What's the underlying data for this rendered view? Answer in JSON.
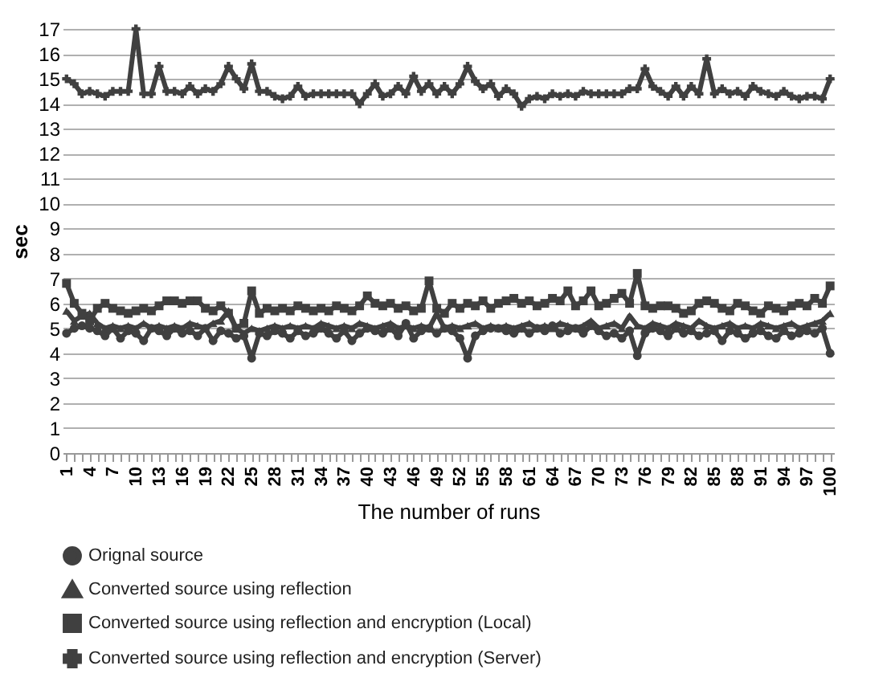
{
  "chart_data": {
    "type": "line",
    "xlabel": "The number of runs",
    "ylabel": "sec",
    "categories": [
      "1",
      null,
      null,
      "4",
      null,
      null,
      "7",
      null,
      null,
      "10",
      null,
      null,
      "13",
      null,
      null,
      "16",
      null,
      null,
      "19",
      null,
      null,
      "22",
      null,
      null,
      "25",
      null,
      null,
      "28",
      null,
      null,
      "31",
      null,
      null,
      "34",
      null,
      null,
      "37",
      null,
      null,
      "40",
      null,
      null,
      "43",
      null,
      null,
      "46",
      null,
      null,
      "49",
      null,
      null,
      "52",
      null,
      null,
      "55",
      null,
      null,
      "58",
      null,
      null,
      "61",
      null,
      null,
      "64",
      null,
      null,
      "67",
      null,
      null,
      "70",
      null,
      null,
      "73",
      null,
      null,
      "76",
      null,
      null,
      "79",
      null,
      null,
      "82",
      null,
      null,
      "85",
      null,
      null,
      "88",
      null,
      null,
      "91",
      null,
      null,
      "94",
      null,
      null,
      "97",
      null,
      null,
      "100"
    ],
    "ylim": [
      0,
      17
    ],
    "yticks": [
      0,
      1,
      2,
      3,
      4,
      5,
      6,
      7,
      8,
      9,
      10,
      11,
      12,
      13,
      14,
      15,
      16,
      17
    ],
    "grid": "y",
    "legend": "bottom",
    "line_style": "solid",
    "series": [
      {
        "name": "Orignal source",
        "color": "#404040",
        "marker": "circle",
        "values": [
          4.8,
          5.0,
          5.1,
          5.0,
          4.9,
          4.7,
          5.0,
          4.6,
          4.9,
          4.8,
          4.5,
          5.0,
          4.9,
          4.7,
          5.0,
          4.8,
          4.9,
          4.7,
          5.0,
          4.5,
          4.9,
          4.8,
          4.6,
          4.7,
          3.8,
          4.8,
          4.7,
          4.9,
          4.8,
          4.6,
          4.9,
          4.7,
          4.8,
          5.0,
          4.8,
          4.6,
          4.9,
          4.5,
          4.8,
          5.0,
          4.9,
          4.8,
          5.0,
          4.7,
          5.2,
          4.6,
          4.9,
          5.0,
          4.8,
          5.0,
          4.9,
          4.6,
          3.8,
          4.7,
          4.9,
          5.0,
          5.0,
          4.9,
          4.8,
          5.0,
          4.8,
          5.0,
          4.9,
          5.1,
          4.8,
          4.9,
          5.0,
          4.8,
          5.1,
          4.9,
          4.7,
          4.8,
          4.6,
          4.9,
          3.9,
          4.8,
          5.0,
          4.9,
          4.7,
          5.0,
          4.8,
          4.9,
          4.7,
          4.8,
          4.9,
          4.5,
          4.9,
          4.8,
          4.6,
          4.8,
          4.9,
          4.7,
          4.6,
          4.9,
          4.7,
          4.8,
          4.9,
          4.8,
          5.0,
          4.0
        ]
      },
      {
        "name": "Converted source using reflection",
        "color": "#404040",
        "marker": "triangle",
        "values": [
          5.7,
          5.3,
          5.5,
          5.6,
          5.2,
          5.0,
          5.1,
          5.0,
          5.1,
          5.0,
          5.2,
          5.0,
          5.1,
          5.0,
          5.1,
          5.0,
          5.2,
          5.1,
          5.0,
          5.2,
          5.3,
          5.7,
          5.0,
          4.8,
          5.0,
          4.9,
          5.0,
          5.1,
          5.0,
          5.1,
          5.0,
          5.1,
          5.0,
          5.2,
          5.1,
          5.0,
          5.1,
          5.0,
          5.2,
          5.1,
          5.0,
          5.1,
          5.2,
          5.0,
          5.1,
          5.0,
          5.1,
          5.0,
          5.6,
          5.0,
          5.1,
          5.0,
          5.1,
          5.2,
          5.0,
          5.1,
          5.0,
          5.1,
          5.0,
          5.1,
          5.2,
          5.0,
          5.1,
          5.0,
          5.2,
          5.1,
          5.0,
          5.1,
          5.3,
          5.0,
          5.1,
          5.2,
          5.0,
          5.5,
          5.1,
          5.0,
          5.2,
          5.1,
          5.0,
          5.2,
          5.1,
          5.0,
          5.3,
          5.1,
          5.0,
          5.1,
          5.2,
          5.0,
          5.1,
          5.0,
          5.2,
          5.1,
          5.0,
          5.1,
          5.2,
          5.0,
          5.1,
          5.2,
          5.3,
          5.6
        ]
      },
      {
        "name": "Converted source using reflection and encryption (Local)",
        "color": "#404040",
        "marker": "square",
        "values": [
          6.8,
          6.0,
          5.6,
          5.3,
          5.8,
          6.0,
          5.8,
          5.7,
          5.6,
          5.7,
          5.8,
          5.7,
          5.9,
          6.1,
          6.1,
          6.0,
          6.1,
          6.1,
          5.8,
          5.7,
          5.9,
          5.6,
          5.0,
          5.2,
          6.5,
          5.6,
          5.8,
          5.7,
          5.8,
          5.7,
          5.9,
          5.8,
          5.7,
          5.8,
          5.7,
          5.9,
          5.8,
          5.7,
          5.9,
          6.3,
          6.0,
          5.9,
          6.0,
          5.8,
          5.9,
          5.7,
          5.8,
          6.9,
          5.8,
          5.6,
          6.0,
          5.8,
          6.0,
          5.9,
          6.1,
          5.8,
          6.0,
          6.1,
          6.2,
          6.0,
          6.1,
          5.9,
          6.0,
          6.2,
          6.1,
          6.5,
          5.9,
          6.1,
          6.5,
          5.9,
          6.0,
          6.2,
          6.4,
          6.0,
          7.2,
          5.9,
          5.8,
          5.9,
          5.9,
          5.8,
          5.6,
          5.7,
          6.0,
          6.1,
          6.0,
          5.8,
          5.7,
          6.0,
          5.9,
          5.7,
          5.6,
          5.9,
          5.8,
          5.7,
          5.9,
          6.0,
          5.9,
          6.2,
          6.0,
          6.7
        ]
      },
      {
        "name": "Converted source using reflection and encryption (Server)",
        "color": "#404040",
        "marker": "cross",
        "values": [
          15.0,
          14.8,
          14.4,
          14.5,
          14.4,
          14.3,
          14.5,
          14.5,
          14.5,
          17.0,
          14.4,
          14.4,
          15.5,
          14.5,
          14.5,
          14.4,
          14.7,
          14.4,
          14.6,
          14.5,
          14.8,
          15.5,
          15.0,
          14.6,
          15.6,
          14.5,
          14.5,
          14.3,
          14.2,
          14.3,
          14.7,
          14.3,
          14.4,
          14.4,
          14.4,
          14.4,
          14.4,
          14.4,
          14.0,
          14.4,
          14.8,
          14.3,
          14.4,
          14.7,
          14.4,
          15.1,
          14.5,
          14.8,
          14.4,
          14.7,
          14.4,
          14.8,
          15.5,
          14.9,
          14.6,
          14.8,
          14.3,
          14.6,
          14.4,
          13.9,
          14.2,
          14.3,
          14.2,
          14.4,
          14.3,
          14.4,
          14.3,
          14.5,
          14.4,
          14.4,
          14.4,
          14.4,
          14.4,
          14.6,
          14.6,
          15.4,
          14.7,
          14.5,
          14.3,
          14.7,
          14.3,
          14.7,
          14.4,
          15.8,
          14.4,
          14.6,
          14.4,
          14.5,
          14.3,
          14.7,
          14.5,
          14.4,
          14.3,
          14.5,
          14.3,
          14.2,
          14.3,
          14.3,
          14.2,
          15.0
        ]
      }
    ]
  }
}
